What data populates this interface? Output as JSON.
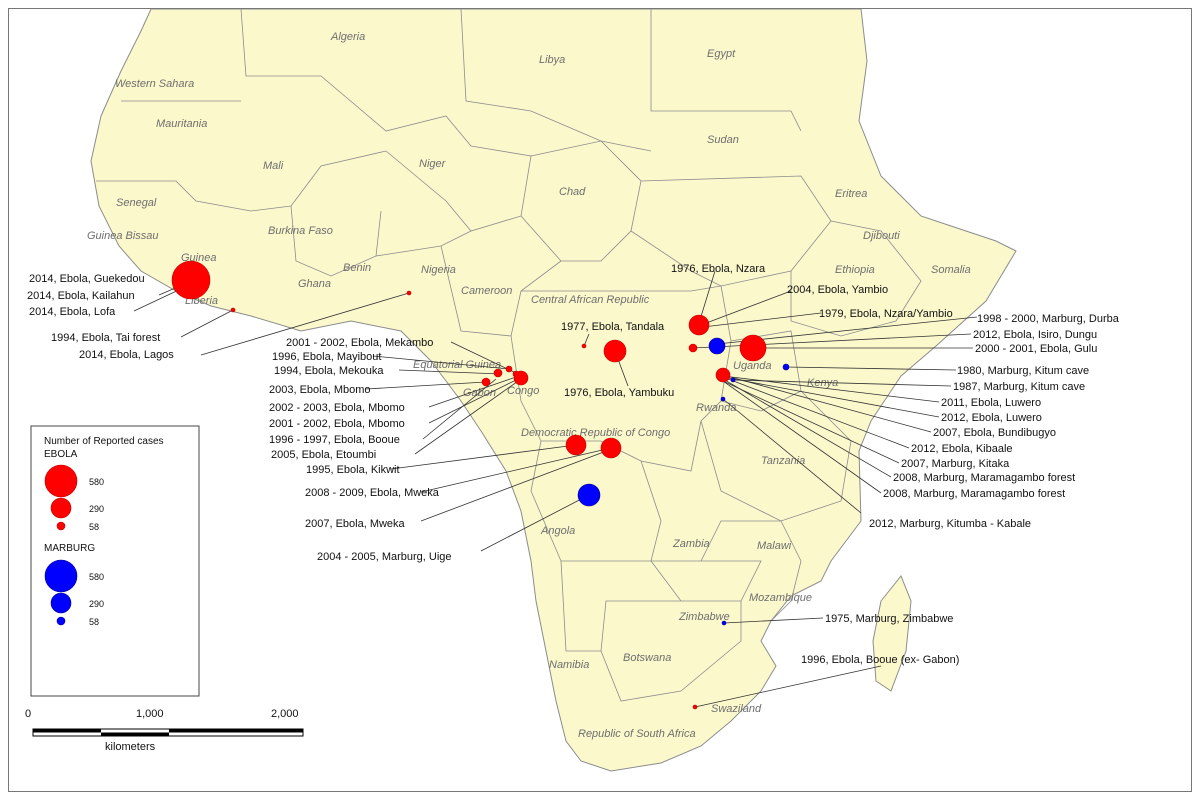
{
  "colors": {
    "land": "#fbf8cc",
    "border": "#8c8c8c",
    "sea": "#ffffff",
    "ebola": "#ff0000",
    "marburg": "#0000ff",
    "label": "#6e6e6e"
  },
  "country_labels": [
    "Algeria",
    "Libya",
    "Egypt",
    "Western Sahara",
    "Mauritania",
    "Mali",
    "Niger",
    "Chad",
    "Sudan",
    "Eritrea",
    "Djibouti",
    "Senegal",
    "Guinea Bissau",
    "Guinea",
    "Burkina Faso",
    "Benin",
    "Nigeria",
    "Ghana",
    "Liberia",
    "Cameroon",
    "Central African Republic",
    "Ethiopia",
    "Somalia",
    "Equatorial Guinea",
    "Gabon",
    "Congo",
    "Uganda",
    "Kenya",
    "Rwanda",
    "Democratic Republic of Congo",
    "Tanzania",
    "Angola",
    "Zambia",
    "Malawi",
    "Mozambique",
    "Zimbabwe",
    "Namibia",
    "Botswana",
    "Swaziland",
    "Republic of South Africa"
  ],
  "outbreak_labels": [
    "2014, Ebola, Guekedou",
    "2014, Ebola, Kailahun",
    "2014, Ebola, Lofa",
    "1994, Ebola, Tai forest",
    "2014, Ebola, Lagos",
    "2001 - 2002, Ebola, Mekambo",
    "1996, Ebola, Mayibout",
    "1994, Ebola, Mekouka",
    "2003, Ebola, Mbomo",
    "2002 - 2003, Ebola, Mbomo",
    "2001 - 2002, Ebola, Mbomo",
    "1996 - 1997, Ebola, Booue",
    "2005, Ebola, Etoumbi",
    "1995, Ebola, Kikwit",
    "2008 - 2009, Ebola, Mweka",
    "2007, Ebola, Mweka",
    "2004 - 2005, Marburg, Uige",
    "1977, Ebola, Tandala",
    "1976, Ebola, Yambuku",
    "1976, Ebola, Nzara",
    "2004, Ebola, Yambio",
    "1979, Ebola, Nzara/Yambio",
    "1998 - 2000, Marburg, Durba",
    "2012, Ebola, Isiro, Dungu",
    "2000 - 2001, Ebola, Gulu",
    "1980, Marburg, Kitum cave",
    "1987, Marburg, Kitum cave",
    "2011, Ebola, Luwero",
    "2012, Ebola, Luwero",
    "2007, Ebola, Bundibugyo",
    "2012, Ebola, Kibaale",
    "2007, Marburg, Kitaka",
    "2008, Marburg, Maramagambo forest",
    "2008, Marburg, Maramagambo forest",
    "2012, Marburg, Kitumba - Kabale",
    "1975, Marburg, Zimbabwe",
    "1996, Ebola, Booue (ex- Gabon)"
  ],
  "legend": {
    "title": "Number of Reported cases",
    "ebola_heading": "EBOLA",
    "marburg_heading": "MARBURG",
    "ebola_sizes": [
      "580",
      "290",
      "58"
    ],
    "marburg_sizes": [
      "580",
      "290",
      "58"
    ]
  },
  "scale_bar": {
    "ticks": [
      "0",
      "1,000",
      "2,000"
    ],
    "unit": "kilometers"
  }
}
